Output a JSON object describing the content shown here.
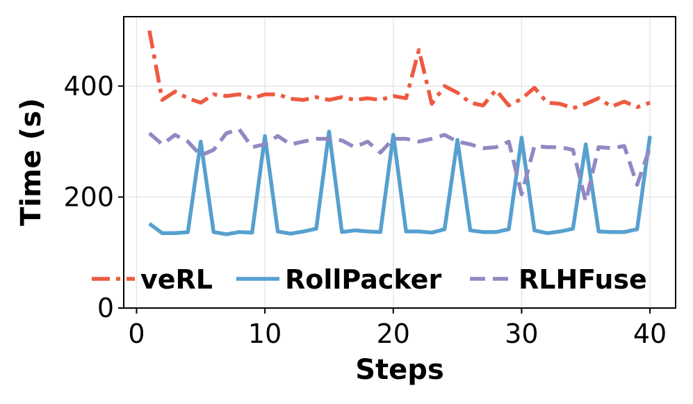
{
  "chart_data": {
    "type": "line",
    "title": "",
    "xlabel": "Steps",
    "ylabel": "Time (s)",
    "xlim": [
      -1,
      42
    ],
    "ylim": [
      0,
      525
    ],
    "xticks": [
      0,
      10,
      20,
      30,
      40
    ],
    "yticks": [
      0,
      200,
      400
    ],
    "grid": true,
    "legend_position": "lower-center",
    "x": [
      1,
      2,
      3,
      4,
      5,
      6,
      7,
      8,
      9,
      10,
      11,
      12,
      13,
      14,
      15,
      16,
      17,
      18,
      19,
      20,
      21,
      22,
      23,
      24,
      25,
      26,
      27,
      28,
      29,
      30,
      31,
      32,
      33,
      34,
      35,
      36,
      37,
      38,
      39,
      40
    ],
    "series": [
      {
        "name": "veRL",
        "color": "#ee5a40",
        "dash": "dashdot",
        "values": [
          500,
          375,
          390,
          378,
          370,
          385,
          382,
          385,
          378,
          385,
          385,
          377,
          375,
          380,
          375,
          380,
          375,
          378,
          375,
          382,
          378,
          465,
          368,
          400,
          388,
          370,
          365,
          393,
          365,
          377,
          397,
          370,
          368,
          360,
          368,
          378,
          363,
          372,
          362,
          370
        ]
      },
      {
        "name": "RollPacker",
        "color": "#56a0cf",
        "dash": "solid",
        "values": [
          152,
          135,
          135,
          137,
          300,
          137,
          133,
          137,
          136,
          310,
          138,
          134,
          138,
          143,
          318,
          137,
          140,
          138,
          137,
          312,
          138,
          138,
          136,
          142,
          303,
          140,
          137,
          137,
          142,
          307,
          140,
          135,
          138,
          143,
          295,
          138,
          137,
          137,
          142,
          310
        ]
      },
      {
        "name": "RLHFuse",
        "color": "#9189c2",
        "dash": "dashed",
        "values": [
          315,
          295,
          312,
          300,
          275,
          285,
          315,
          322,
          290,
          295,
          310,
          295,
          300,
          305,
          305,
          302,
          290,
          300,
          280,
          305,
          305,
          300,
          305,
          312,
          300,
          295,
          288,
          290,
          300,
          205,
          292,
          290,
          290,
          285,
          192,
          290,
          288,
          292,
          222,
          290
        ]
      }
    ]
  }
}
